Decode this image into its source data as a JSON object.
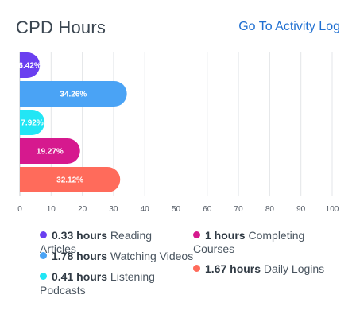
{
  "header": {
    "title": "CPD Hours",
    "link_label": "Go To Activity Log"
  },
  "chart_data": {
    "type": "bar",
    "orientation": "horizontal",
    "categories": [
      "Reading Articles",
      "Watching Videos",
      "Listening Podcasts",
      "Completing Courses",
      "Daily Logins"
    ],
    "values": [
      6.42,
      34.26,
      7.92,
      19.27,
      32.12
    ],
    "labels": [
      "6.42%",
      "34.26%",
      "7.92%",
      "19.27%",
      "32.12%"
    ],
    "colors": [
      "#6a3ff0",
      "#4aa3f5",
      "#22e6f5",
      "#d6198e",
      "#ff6b5b"
    ],
    "xlim": [
      0,
      100
    ],
    "xticks": [
      "0",
      "10",
      "20",
      "30",
      "40",
      "50",
      "60",
      "70",
      "80",
      "90",
      "100"
    ],
    "grid": true
  },
  "legend": {
    "items": [
      {
        "hours": "0.33 hours",
        "label": "Reading Articles",
        "color": "#6a3ff0"
      },
      {
        "hours": "1 hours",
        "label": "Completing Courses",
        "color": "#d6198e"
      },
      {
        "hours": "1.78 hours",
        "label": "Watching Videos",
        "color": "#4aa3f5"
      },
      {
        "hours": "1.67 hours",
        "label": "Daily Logins",
        "color": "#ff6b5b"
      },
      {
        "hours": "0.41 hours",
        "label": "Listening Podcasts",
        "color": "#22e6f5"
      }
    ]
  }
}
